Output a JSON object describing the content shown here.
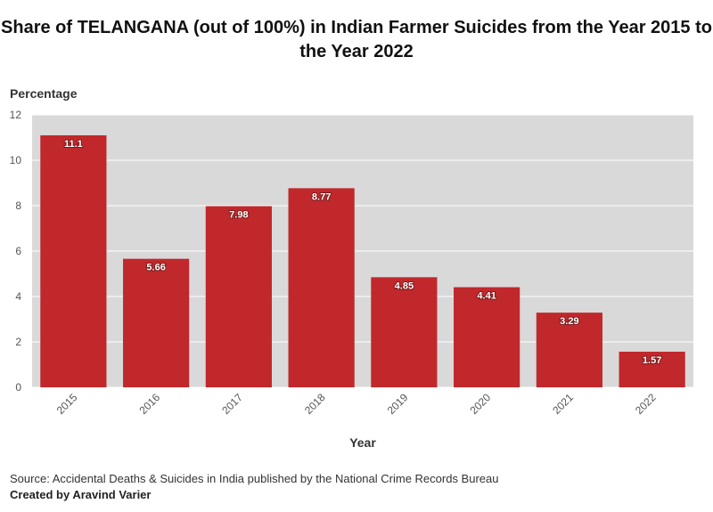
{
  "chart_data": {
    "type": "bar",
    "title": "Share of TELANGANA (out of 100%) in Indian Farmer Suicides from the Year 2015 to the Year 2022",
    "ylabel": "Percentage",
    "xlabel": "Year",
    "categories": [
      "2015",
      "2016",
      "2017",
      "2018",
      "2019",
      "2020",
      "2021",
      "2022"
    ],
    "values": [
      11.1,
      5.66,
      7.98,
      8.77,
      4.85,
      4.41,
      3.29,
      1.57
    ],
    "data_labels": [
      "11.1",
      "5.66",
      "7.98",
      "8.77",
      "4.85",
      "4.41",
      "3.29",
      "1.57"
    ],
    "ylim": [
      0,
      12
    ],
    "yticks": [
      0,
      2,
      4,
      6,
      8,
      10,
      12
    ],
    "grid": true,
    "bar_color": "#c0282c",
    "plot_background": "#d9d9d9"
  },
  "footer": {
    "source": "Source: Accidental Deaths & Suicides in India published by the National Crime Records Bureau",
    "credit": "Created by Aravind Varier"
  }
}
